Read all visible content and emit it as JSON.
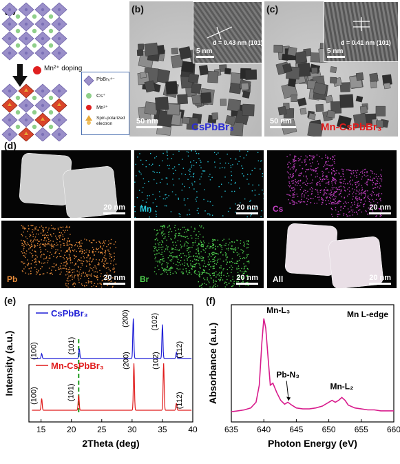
{
  "panels": {
    "a": {
      "label": "(a)",
      "doping_text": "Mn²⁺ doping",
      "legend": [
        {
          "text": "PbBr₆⁴⁻",
          "icon": "octahedron-icon"
        },
        {
          "text": "Cs⁺",
          "icon": "green-sphere-icon"
        },
        {
          "text": "Mn²⁺",
          "icon": "red-sphere-icon"
        },
        {
          "text": "Spin-polarized electron",
          "icon": "spin-arrow-icon"
        }
      ],
      "colors": {
        "octahedron": "#9a8fc9",
        "cs": "#8fcf8a",
        "mn": "#e02020",
        "box": "#4a6fb0"
      }
    },
    "b": {
      "label": "(b)",
      "inset_d": "d = 0.43 nm (101)",
      "inset_scale": "5 nm",
      "scale": "50 nm",
      "title": "CsPbBr₃",
      "title_color": "#2b2bd6"
    },
    "c": {
      "label": "(c)",
      "inset_d": "d = 0.41 nm (101)",
      "inset_scale": "5 nm",
      "scale": "50 nm",
      "title": "Mn-CsPbBr₃",
      "title_color": "#e31b1b"
    },
    "d": {
      "label": "(d)",
      "tiles": [
        {
          "name": "haadf",
          "label": "",
          "scale": "20 nm",
          "color": "#ffffff"
        },
        {
          "name": "mn",
          "label": "Mn",
          "scale": "20 nm",
          "color": "#26c6da"
        },
        {
          "name": "cs",
          "label": "Cs",
          "scale": "20 nm",
          "color": "#c23fc2"
        },
        {
          "name": "pb",
          "label": "Pb",
          "scale": "20 nm",
          "color": "#e58a3a"
        },
        {
          "name": "br",
          "label": "Br",
          "scale": "20 nm",
          "color": "#4fd14f"
        },
        {
          "name": "all",
          "label": "All",
          "scale": "20 nm",
          "color": "#ffffff"
        }
      ]
    },
    "e": {
      "label": "(e)"
    },
    "f": {
      "label": "(f)"
    }
  },
  "chart_data": [
    {
      "type": "line",
      "panel": "e",
      "xlabel": "2Theta (deg)",
      "ylabel": "Intensity (a.u.)",
      "xlim": [
        13,
        40
      ],
      "xticks": [
        15,
        20,
        25,
        30,
        35,
        40
      ],
      "reference_line_x": 21.2,
      "series": [
        {
          "name": "CsPbBr₃",
          "color": "#1f1fd6",
          "peaks": [
            {
              "x": 15.1,
              "h": 0.12
            },
            {
              "x": 21.3,
              "h": 0.25
            },
            {
              "x": 30.2,
              "h": 1.0
            },
            {
              "x": 35.0,
              "h": 0.85
            },
            {
              "x": 37.3,
              "h": 0.15
            }
          ],
          "peak_labels": [
            "(100)",
            "(101)",
            "(200)",
            "(102)",
            "(112)"
          ]
        },
        {
          "name": "Mn-CsPbBr₃",
          "color": "#e01b1b",
          "peaks": [
            {
              "x": 15.1,
              "h": 0.25
            },
            {
              "x": 21.2,
              "h": 0.32
            },
            {
              "x": 30.3,
              "h": 1.0
            },
            {
              "x": 35.2,
              "h": 1.0
            },
            {
              "x": 37.3,
              "h": 0.15
            }
          ],
          "peak_labels": [
            "(100)",
            "(101)",
            "(200)",
            "(102)",
            "(112)"
          ]
        }
      ]
    },
    {
      "type": "line",
      "panel": "f",
      "title": "Mn L-edge",
      "xlabel": "Photon Energy (eV)",
      "ylabel": "Absorbance (a.u.)",
      "xlim": [
        635,
        660
      ],
      "xticks": [
        635,
        640,
        645,
        650,
        655,
        660
      ],
      "annotations": [
        {
          "text": "Mn-L₃",
          "x": 640.2
        },
        {
          "text": "Pb-N₃",
          "x": 643.7
        },
        {
          "text": "Mn-L₂",
          "x": 652.0
        }
      ],
      "series": [
        {
          "name": "Mn L-edge",
          "color": "#d81b8c",
          "x": [
            635,
            636,
            637,
            638,
            638.8,
            639.3,
            639.7,
            640.0,
            640.3,
            640.7,
            641.0,
            641.4,
            642.0,
            642.6,
            643.2,
            643.7,
            644.3,
            645.0,
            646,
            647,
            648,
            649,
            650,
            650.5,
            651,
            651.5,
            652,
            652.5,
            653,
            654,
            655,
            656,
            657,
            658,
            659,
            660
          ],
          "y": [
            0.02,
            0.03,
            0.04,
            0.06,
            0.12,
            0.3,
            0.75,
            1.0,
            0.9,
            0.55,
            0.3,
            0.32,
            0.22,
            0.14,
            0.1,
            0.12,
            0.09,
            0.06,
            0.05,
            0.05,
            0.06,
            0.08,
            0.12,
            0.14,
            0.12,
            0.14,
            0.17,
            0.14,
            0.09,
            0.06,
            0.05,
            0.04,
            0.04,
            0.03,
            0.03,
            0.03
          ]
        }
      ]
    }
  ]
}
